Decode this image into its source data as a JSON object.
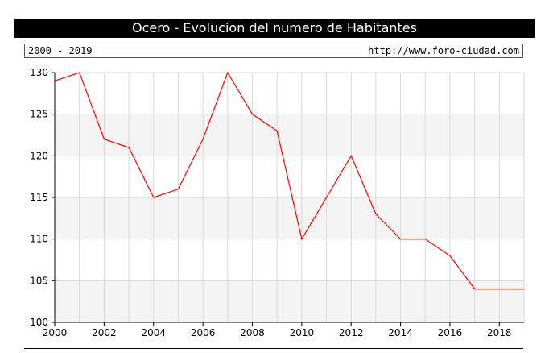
{
  "header": {
    "title": "Ocero - Evolucion del numero de Habitantes",
    "range_label": "2000 - 2019",
    "source_url": "http://www.foro-ciudad.com"
  },
  "colors": {
    "line": "#ff0000",
    "band": "#f4f4f4",
    "grid": "#d9d9d9",
    "axis": "#000000"
  },
  "chart_data": {
    "type": "line",
    "title": "Ocero - Evolucion del numero de Habitantes",
    "xlabel": "",
    "ylabel": "",
    "x": [
      2000,
      2001,
      2002,
      2003,
      2004,
      2005,
      2006,
      2007,
      2008,
      2009,
      2010,
      2011,
      2012,
      2013,
      2014,
      2015,
      2016,
      2017,
      2018,
      2019
    ],
    "series": [
      {
        "values": [
          129,
          130,
          122,
          121,
          115,
          116,
          122,
          130,
          125,
          123,
          110,
          115,
          120,
          113,
          110,
          110,
          108,
          104,
          104,
          104
        ]
      }
    ],
    "xlim": [
      2000,
      2019
    ],
    "ylim": [
      100,
      130
    ],
    "x_ticks": [
      2000,
      2002,
      2004,
      2006,
      2008,
      2010,
      2012,
      2014,
      2016,
      2018
    ],
    "y_ticks": [
      100,
      105,
      110,
      115,
      120,
      125,
      130
    ],
    "grid": true
  }
}
